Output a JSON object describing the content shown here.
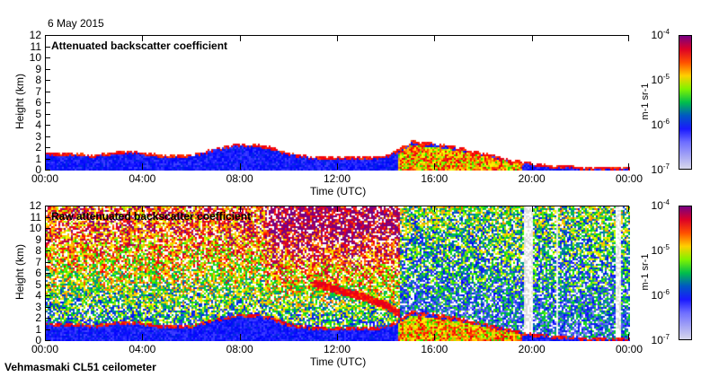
{
  "date": "6 May 2015",
  "footer": "Vehmasmaki CL51 ceilometer",
  "chart_data": [
    {
      "type": "heatmap",
      "title": "Attenuated backscatter coefficient",
      "xlabel": "Time (UTC)",
      "ylabel": "Height (km)",
      "xticks": [
        "00:00",
        "04:00",
        "08:00",
        "12:00",
        "16:00",
        "20:00",
        "00:00"
      ],
      "yticks": [
        "0",
        "1",
        "2",
        "3",
        "4",
        "5",
        "6",
        "7",
        "8",
        "9",
        "10",
        "11",
        "12"
      ],
      "xlim": [
        0,
        24
      ],
      "ylim": [
        0,
        12
      ],
      "colorbar": {
        "label": "m-1 sr-1",
        "scale": "log",
        "range": [
          1e-07,
          0.0001
        ],
        "ticks": [
          "-7",
          "-6",
          "-5",
          "-4"
        ]
      },
      "boundary_layer_top_km": {
        "hours": [
          0,
          1,
          2,
          3,
          4,
          5,
          6,
          7,
          8,
          9,
          10,
          11,
          12,
          13,
          14,
          15,
          16,
          17,
          18,
          19,
          20,
          21,
          22,
          23,
          24
        ],
        "values": [
          1.6,
          1.5,
          1.4,
          1.7,
          1.6,
          1.3,
          1.4,
          2.0,
          2.4,
          2.2,
          1.5,
          1.2,
          1.2,
          1.2,
          1.3,
          2.6,
          2.4,
          2.0,
          1.5,
          1.0,
          0.6,
          0.4,
          0.3,
          0.2,
          0.2
        ]
      },
      "noise": false
    },
    {
      "type": "heatmap",
      "title": "Raw attenuated backscatter coefficient",
      "xlabel": "Time (UTC)",
      "ylabel": "Height (km)",
      "xticks": [
        "00:00",
        "04:00",
        "08:00",
        "12:00",
        "16:00",
        "20:00",
        "00:00"
      ],
      "yticks": [
        "0",
        "1",
        "2",
        "3",
        "4",
        "5",
        "6",
        "7",
        "8",
        "9",
        "10",
        "11",
        "12"
      ],
      "xlim": [
        0,
        24
      ],
      "ylim": [
        0,
        12
      ],
      "colorbar": {
        "label": "m-1 sr-1",
        "scale": "log",
        "range": [
          1e-07,
          0.0001
        ],
        "ticks": [
          "-7",
          "-6",
          "-5",
          "-4"
        ]
      },
      "boundary_layer_top_km": {
        "hours": [
          0,
          1,
          2,
          3,
          4,
          5,
          6,
          7,
          8,
          9,
          10,
          11,
          12,
          13,
          14,
          15,
          16,
          17,
          18,
          19,
          20,
          21,
          22,
          23,
          24
        ],
        "values": [
          1.6,
          1.5,
          1.4,
          1.7,
          1.6,
          1.3,
          1.4,
          2.0,
          2.4,
          2.2,
          1.5,
          1.2,
          1.2,
          1.2,
          1.3,
          2.6,
          2.4,
          2.0,
          1.5,
          1.0,
          0.6,
          0.4,
          0.3,
          0.2,
          0.2
        ]
      },
      "elevated_layer_km": {
        "hours": [
          11,
          12,
          13,
          14,
          14.5
        ],
        "values": [
          5.2,
          4.6,
          4.0,
          3.2,
          2.5
        ]
      },
      "noise": true
    }
  ]
}
